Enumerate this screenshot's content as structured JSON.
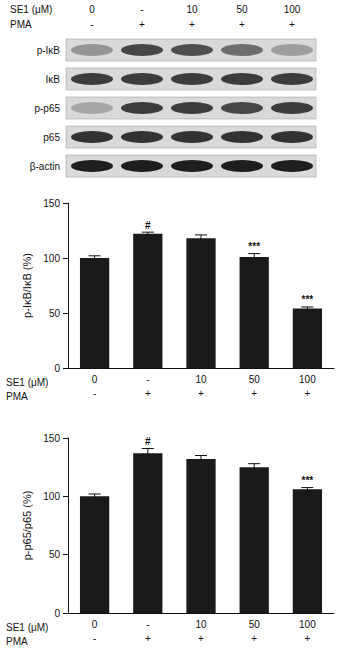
{
  "blot": {
    "header": [
      {
        "label": "SE1 (μM)",
        "values": [
          "0",
          "-",
          "10",
          "50",
          "100"
        ]
      },
      {
        "label": "PMA",
        "values": [
          "-",
          "+",
          "+",
          "+",
          "+"
        ]
      }
    ],
    "rows": [
      "p-IκB",
      "IκB",
      "p-p65",
      "p65",
      "β-actin"
    ]
  },
  "chart_data": [
    {
      "type": "bar",
      "ylabel": "p-IκB/IκB (%)",
      "category_label": "SE1 (μM)",
      "categories": [
        "0",
        "-",
        "10",
        "50",
        "100"
      ],
      "category2_label": "PMA",
      "categories2": [
        "-",
        "+",
        "+",
        "+",
        "+"
      ],
      "values": [
        100,
        122,
        118,
        101,
        54
      ],
      "errors": [
        2,
        1.5,
        3,
        3,
        1.5
      ],
      "annotations": [
        null,
        "#",
        null,
        "***",
        "***"
      ],
      "color": "#1a1a1a",
      "ylim": [
        0,
        150
      ],
      "yticks": [
        0,
        50,
        100,
        150
      ],
      "grid": false
    },
    {
      "type": "bar",
      "ylabel": "p-p65/p65 (%)",
      "category_label": "SE1 (μM)",
      "categories": [
        "0",
        "-",
        "10",
        "50",
        "100"
      ],
      "category2_label": "PMA",
      "categories2": [
        "-",
        "+",
        "+",
        "+",
        "+"
      ],
      "values": [
        100,
        137,
        132,
        125,
        106
      ],
      "errors": [
        2,
        4,
        3,
        3,
        1.5
      ],
      "annotations": [
        null,
        "#",
        null,
        null,
        "***"
      ],
      "color": "#1a1a1a",
      "ylim": [
        0,
        150
      ],
      "yticks": [
        0,
        50,
        100,
        150
      ],
      "grid": false
    }
  ]
}
